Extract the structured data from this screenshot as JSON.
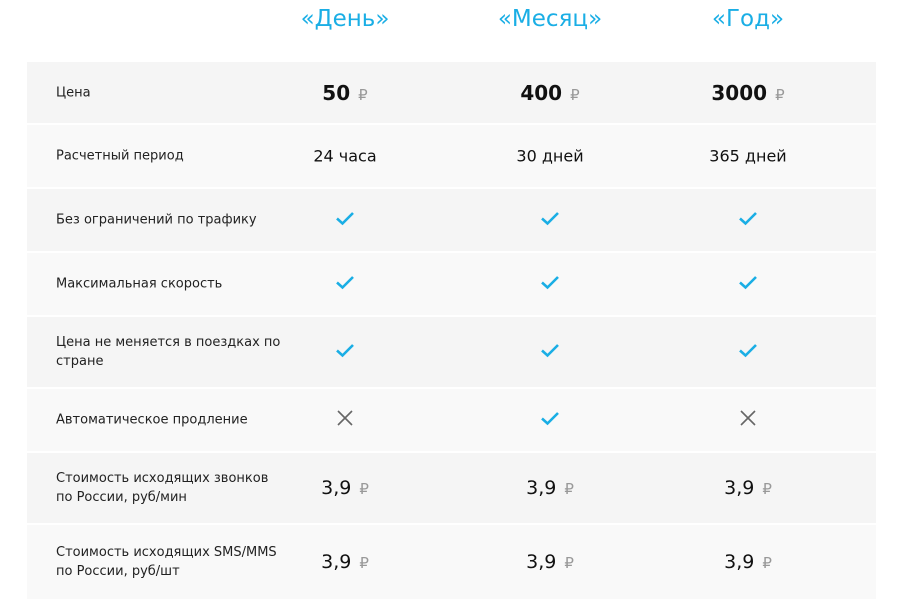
{
  "plans": [
    "«День»",
    "«Месяц»",
    "«Год»"
  ],
  "currency_symbol": "₽",
  "colors": {
    "accent": "#1aaee5",
    "cross": "#666666"
  },
  "rows": [
    {
      "label": "Цена",
      "type": "price",
      "values": [
        "50",
        "400",
        "3000"
      ]
    },
    {
      "label": "Расчетный период",
      "type": "text",
      "values": [
        "24 часа",
        "30 дней",
        "365 дней"
      ]
    },
    {
      "label": "Без ограничений по трафику",
      "type": "bool",
      "values": [
        true,
        true,
        true
      ]
    },
    {
      "label": "Максимальная скорость",
      "type": "bool",
      "values": [
        true,
        true,
        true
      ]
    },
    {
      "label": "Цена не меняется в поездках по стране",
      "type": "bool",
      "values": [
        true,
        true,
        true
      ]
    },
    {
      "label": "Автоматическое продление",
      "type": "bool",
      "values": [
        false,
        true,
        false
      ]
    },
    {
      "label": "Стоимость исходящих звонков по России, руб/мин",
      "type": "cost",
      "values": [
        "3,9",
        "3,9",
        "3,9"
      ]
    },
    {
      "label": "Стоимость исходящих SMS/MMS по России, руб/шт",
      "type": "cost",
      "values": [
        "3,9",
        "3,9",
        "3,9"
      ]
    }
  ]
}
